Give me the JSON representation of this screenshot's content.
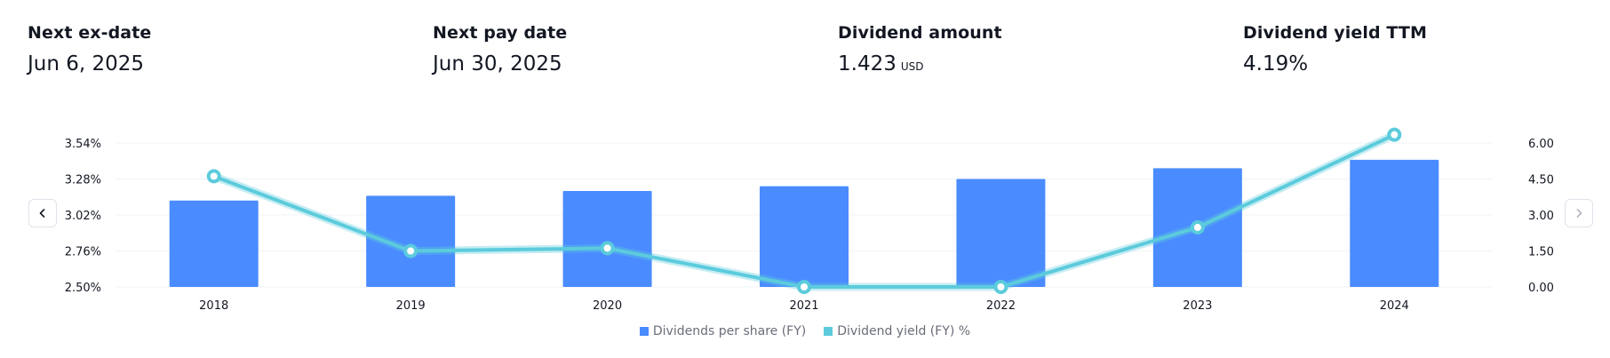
{
  "stats": [
    {
      "label": "Next ex-date",
      "value": "Jun 6, 2025",
      "unit": ""
    },
    {
      "label": "Next pay date",
      "value": "Jun 30, 2025",
      "unit": ""
    },
    {
      "label": "Dividend amount",
      "value": "1.423",
      "unit": "USD"
    },
    {
      "label": "Dividend yield TTM",
      "value": "4.19%",
      "unit": ""
    }
  ],
  "icons": {
    "prev": "chevron-left-icon",
    "next": "chevron-right-icon"
  },
  "colors": {
    "bars": "#4a8cff",
    "line": "#5ccbdc",
    "grid": "#f0f3fa",
    "text": "#131722",
    "muted": "#6a6d78"
  },
  "chart_data": {
    "type": "bar",
    "categories": [
      "2018",
      "2019",
      "2020",
      "2021",
      "2022",
      "2023",
      "2024"
    ],
    "left_axis": {
      "ticks": [
        "2.50%",
        "2.76%",
        "3.02%",
        "3.28%",
        "3.54%"
      ],
      "min": 2.5,
      "max": 3.54
    },
    "right_axis": {
      "ticks": [
        "0.00",
        "1.50",
        "3.00",
        "4.50",
        "6.00"
      ],
      "min": 0,
      "max": 6
    },
    "series": [
      {
        "name": "Dividends per share (FY)",
        "kind": "bar",
        "axis": "right",
        "values": [
          3.6,
          3.8,
          4.0,
          4.2,
          4.5,
          4.95,
          5.3
        ]
      },
      {
        "name": "Dividend yield (FY) %",
        "kind": "line",
        "axis": "left",
        "values": [
          3.3,
          2.76,
          2.78,
          2.5,
          2.5,
          2.93,
          3.6
        ]
      }
    ],
    "grid": true,
    "legend_position": "bottom"
  }
}
